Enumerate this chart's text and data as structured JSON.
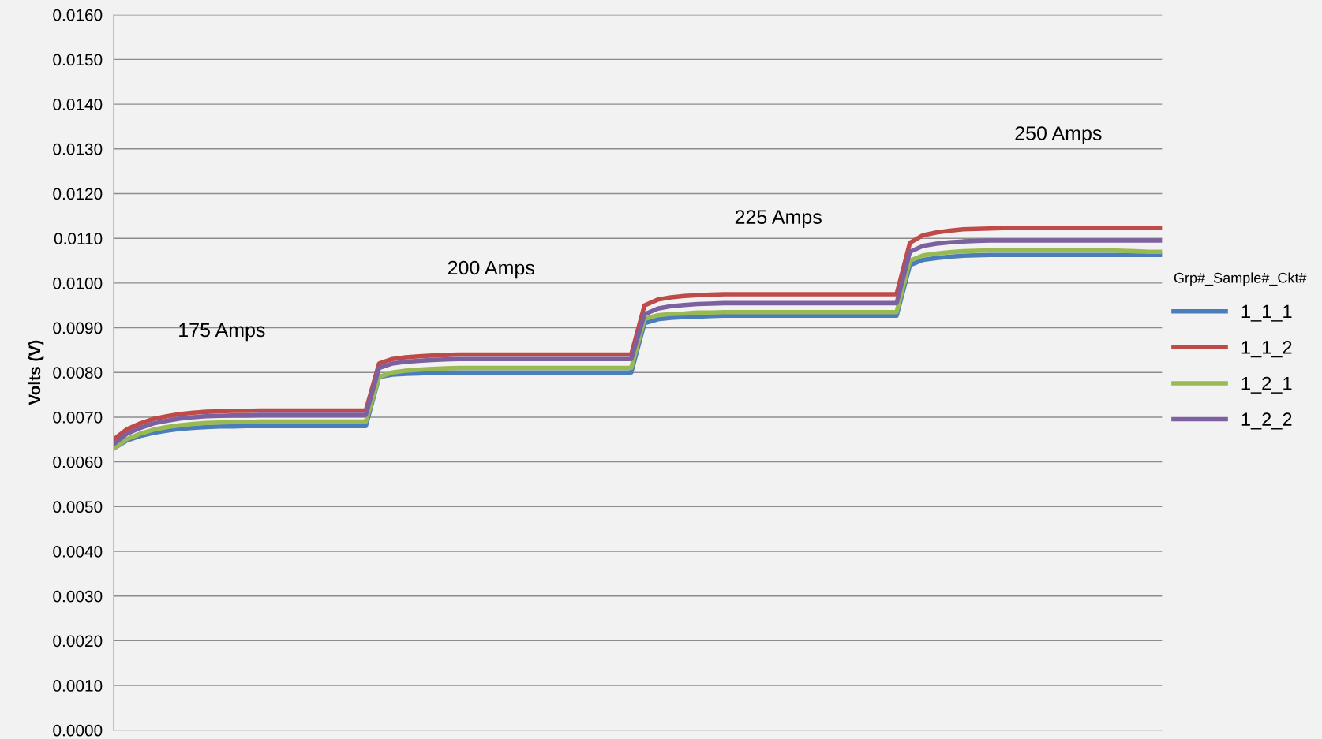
{
  "chart_data": {
    "type": "line",
    "ylabel": "Volts (V)",
    "legend_title": "Grp#_Sample#_Ckt#",
    "legend": "right",
    "grid": "y",
    "tick_labels": "y",
    "marker": "none",
    "line_style": "solid",
    "ylim": [
      0,
      0.016
    ],
    "yticks": [
      {
        "value": 0,
        "label": "0.0000"
      },
      {
        "value": 0.001,
        "label": "0.0010"
      },
      {
        "value": 0.002,
        "label": "0.0020"
      },
      {
        "value": 0.003,
        "label": "0.0030"
      },
      {
        "value": 0.004,
        "label": "0.0040"
      },
      {
        "value": 0.005,
        "label": "0.0050"
      },
      {
        "value": 0.006,
        "label": "0.0060"
      },
      {
        "value": 0.007,
        "label": "0.0070"
      },
      {
        "value": 0.008,
        "label": "0.0080"
      },
      {
        "value": 0.009,
        "label": "0.0090"
      },
      {
        "value": 0.01,
        "label": "0.0100"
      },
      {
        "value": 0.011,
        "label": "0.0110"
      },
      {
        "value": 0.012,
        "label": "0.0120"
      },
      {
        "value": 0.013,
        "label": "0.0130"
      },
      {
        "value": 0.014,
        "label": "0.0140"
      },
      {
        "value": 0.015,
        "label": "0.0150"
      },
      {
        "value": 0.016,
        "label": "0.0160"
      }
    ],
    "annotations": [
      "175 Amps",
      "200 Amps",
      "225 Amps",
      "250 Amps"
    ],
    "categories": [
      null,
      null,
      null,
      null,
      null,
      null,
      null,
      null,
      null,
      null,
      null,
      null,
      null,
      null,
      null,
      null,
      null,
      null,
      null,
      null,
      null,
      null,
      null,
      null,
      null,
      null,
      null,
      null,
      null,
      null,
      null,
      null,
      null,
      null,
      null,
      null,
      null,
      null,
      null,
      null,
      null,
      null,
      null,
      null,
      null,
      null,
      null,
      null,
      null,
      null,
      null,
      null,
      null,
      null,
      null,
      null,
      null,
      null,
      null,
      null,
      null,
      null,
      null,
      null,
      null,
      null,
      null,
      null,
      null,
      null,
      null,
      null,
      null,
      null,
      null,
      null,
      null,
      null,
      null,
      null
    ],
    "series": [
      {
        "name": "1_1_1",
        "color": "#4a7ebb",
        "values": [
          0.0063,
          0.00648,
          0.00658,
          0.00665,
          0.0067,
          0.00674,
          0.00676,
          0.00678,
          0.00679,
          0.00679,
          0.0068,
          0.0068,
          0.0068,
          0.0068,
          0.0068,
          0.0068,
          0.0068,
          0.0068,
          0.0068,
          0.0068,
          0.0079,
          0.00795,
          0.00797,
          0.00798,
          0.00799,
          0.008,
          0.008,
          0.008,
          0.008,
          0.008,
          0.008,
          0.008,
          0.008,
          0.008,
          0.008,
          0.008,
          0.008,
          0.008,
          0.008,
          0.008,
          0.0091,
          0.00919,
          0.00922,
          0.00924,
          0.00925,
          0.00926,
          0.00927,
          0.00927,
          0.00927,
          0.00927,
          0.00927,
          0.00927,
          0.00927,
          0.00927,
          0.00927,
          0.00927,
          0.00927,
          0.00927,
          0.00927,
          0.00927,
          0.0104,
          0.01052,
          0.01056,
          0.01059,
          0.01061,
          0.01062,
          0.01063,
          0.01063,
          0.01063,
          0.01063,
          0.01063,
          0.01063,
          0.01063,
          0.01063,
          0.01063,
          0.01063,
          0.01063,
          0.01063,
          0.01063,
          0.01063
        ]
      },
      {
        "name": "1_1_2",
        "color": "#be4b48",
        "values": [
          0.0065,
          0.00673,
          0.00686,
          0.00696,
          0.00702,
          0.00707,
          0.0071,
          0.00712,
          0.00713,
          0.00714,
          0.00714,
          0.00715,
          0.00715,
          0.00715,
          0.00715,
          0.00715,
          0.00715,
          0.00715,
          0.00715,
          0.00715,
          0.0082,
          0.0083,
          0.00834,
          0.00836,
          0.00838,
          0.00839,
          0.0084,
          0.0084,
          0.0084,
          0.0084,
          0.0084,
          0.0084,
          0.0084,
          0.0084,
          0.0084,
          0.0084,
          0.0084,
          0.0084,
          0.0084,
          0.0084,
          0.0095,
          0.00963,
          0.00968,
          0.00971,
          0.00973,
          0.00974,
          0.00975,
          0.00975,
          0.00975,
          0.00975,
          0.00975,
          0.00975,
          0.00975,
          0.00975,
          0.00975,
          0.00975,
          0.00975,
          0.00975,
          0.00975,
          0.00975,
          0.0109,
          0.01107,
          0.01113,
          0.01117,
          0.0112,
          0.01121,
          0.01122,
          0.01123,
          0.01123,
          0.01123,
          0.01123,
          0.01123,
          0.01123,
          0.01123,
          0.01123,
          0.01123,
          0.01123,
          0.01123,
          0.01123,
          0.01123
        ]
      },
      {
        "name": "1_2_1",
        "color": "#98b954",
        "values": [
          0.0063,
          0.00651,
          0.00663,
          0.00672,
          0.00678,
          0.00682,
          0.00685,
          0.00687,
          0.00688,
          0.00689,
          0.00689,
          0.0069,
          0.0069,
          0.0069,
          0.0069,
          0.0069,
          0.0069,
          0.0069,
          0.0069,
          0.0069,
          0.0079,
          0.008,
          0.00804,
          0.00806,
          0.00808,
          0.00809,
          0.0081,
          0.0081,
          0.0081,
          0.0081,
          0.0081,
          0.0081,
          0.0081,
          0.0081,
          0.0081,
          0.0081,
          0.0081,
          0.0081,
          0.0081,
          0.0081,
          0.0092,
          0.00928,
          0.00931,
          0.00932,
          0.00934,
          0.00934,
          0.00935,
          0.00935,
          0.00935,
          0.00935,
          0.00935,
          0.00935,
          0.00935,
          0.00935,
          0.00935,
          0.00935,
          0.00935,
          0.00935,
          0.00935,
          0.00935,
          0.0105,
          0.01062,
          0.01066,
          0.01069,
          0.01071,
          0.01072,
          0.01073,
          0.01073,
          0.01073,
          0.01073,
          0.01073,
          0.01073,
          0.01073,
          0.01073,
          0.01073,
          0.01073,
          0.01072,
          0.01071,
          0.0107,
          0.0107
        ]
      },
      {
        "name": "1_2_2",
        "color": "#7d60a0",
        "values": [
          0.0064,
          0.00663,
          0.00676,
          0.00686,
          0.00692,
          0.00697,
          0.007,
          0.00702,
          0.00703,
          0.00704,
          0.00704,
          0.00705,
          0.00705,
          0.00705,
          0.00705,
          0.00705,
          0.00705,
          0.00705,
          0.00705,
          0.00705,
          0.0081,
          0.0082,
          0.00824,
          0.00826,
          0.00828,
          0.00829,
          0.0083,
          0.0083,
          0.0083,
          0.0083,
          0.0083,
          0.0083,
          0.0083,
          0.0083,
          0.0083,
          0.0083,
          0.0083,
          0.0083,
          0.0083,
          0.0083,
          0.0093,
          0.00943,
          0.00948,
          0.00951,
          0.00953,
          0.00954,
          0.00955,
          0.00955,
          0.00955,
          0.00955,
          0.00955,
          0.00955,
          0.00955,
          0.00955,
          0.00955,
          0.00955,
          0.00955,
          0.00955,
          0.00955,
          0.00955,
          0.0107,
          0.01083,
          0.01088,
          0.01091,
          0.01093,
          0.01094,
          0.01095,
          0.01095,
          0.01095,
          0.01095,
          0.01095,
          0.01095,
          0.01095,
          0.01095,
          0.01095,
          0.01095,
          0.01095,
          0.01095,
          0.01095,
          0.01095
        ]
      }
    ]
  }
}
